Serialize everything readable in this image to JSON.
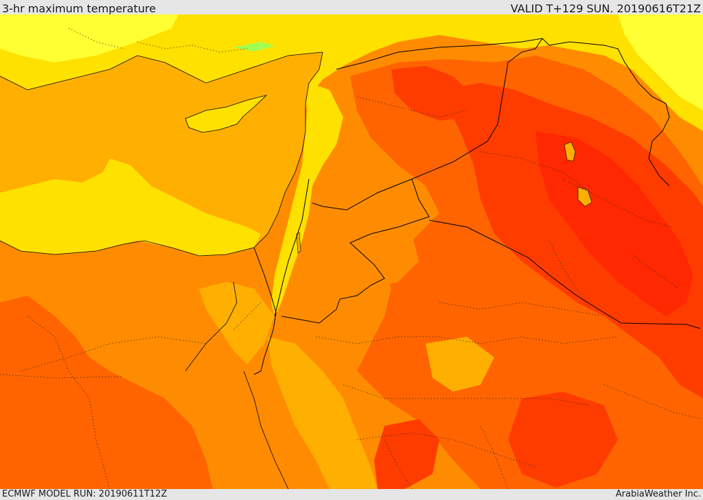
{
  "header": {
    "title": "3-hr maximum temperature",
    "valid": "VALID T+129 SUN. 20190616T21Z"
  },
  "footer": {
    "model_run": "ECMWF MODEL RUN: 20190611T12Z",
    "credit": "ArabiaWeather Inc."
  },
  "map": {
    "field": "3-hr maximum temperature",
    "palette": {
      "light_yellow": "#ffff33",
      "yellow": "#ffe100",
      "amber": "#ffaf00",
      "orange": "#ff8c00",
      "dark_orange": "#ff6400",
      "red_orange": "#ff3c00",
      "red": "#ff2800",
      "green_patch": "#a0ff50"
    },
    "border_color": "#000000"
  }
}
